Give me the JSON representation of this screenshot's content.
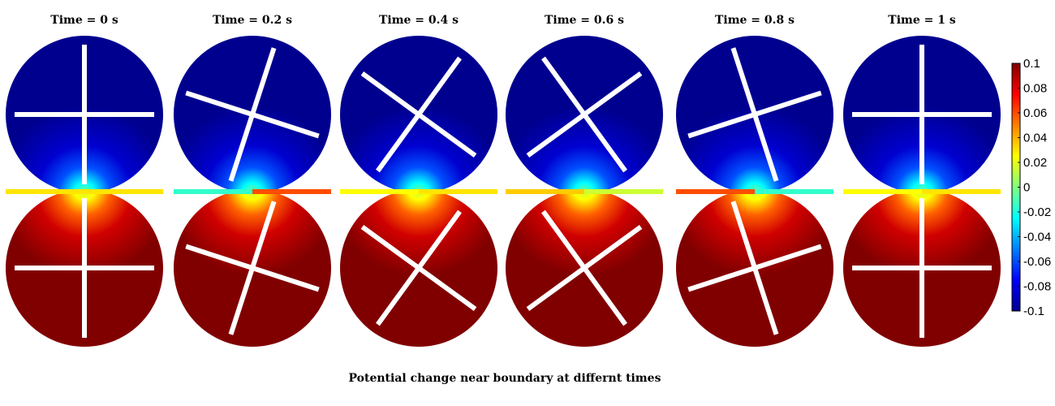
{
  "figure": {
    "caption": "Potential change near boundary at differnt times"
  },
  "frames": [
    {
      "title": "Time = 0 s",
      "time_s": 0,
      "rotation_deg": 0,
      "strip_left_value": 0.03,
      "strip_right_value": 0.03
    },
    {
      "title": "Time = 0.2 s",
      "time_s": 0.2,
      "rotation_deg": 18,
      "strip_left_value": -0.015,
      "strip_right_value": 0.06
    },
    {
      "title": "Time = 0.4 s",
      "time_s": 0.4,
      "rotation_deg": 36,
      "strip_left_value": 0.025,
      "strip_right_value": 0.03
    },
    {
      "title": "Time = 0.6 s",
      "time_s": 0.6,
      "rotation_deg": 54,
      "strip_left_value": 0.035,
      "strip_right_value": 0.015
    },
    {
      "title": "Time = 0.8 s",
      "time_s": 0.8,
      "rotation_deg": 72,
      "strip_left_value": 0.06,
      "strip_right_value": -0.015
    },
    {
      "title": "Time = 1 s",
      "time_s": 1,
      "rotation_deg": 90,
      "strip_left_value": 0.025,
      "strip_right_value": 0.03
    }
  ],
  "colorbar": {
    "min": -0.1,
    "max": 0.1,
    "ticks": [
      "0.1",
      "0.08",
      "0.06",
      "0.04",
      "0.02",
      "0",
      "-0.02",
      "-0.04",
      "-0.06",
      "-0.08",
      "-0.1"
    ],
    "top_region_value": -0.1,
    "bottom_region_value": 0.1
  },
  "colors": {
    "deep_blue": "#00008f",
    "deep_red": "#800000",
    "cross": "#ffffff"
  }
}
